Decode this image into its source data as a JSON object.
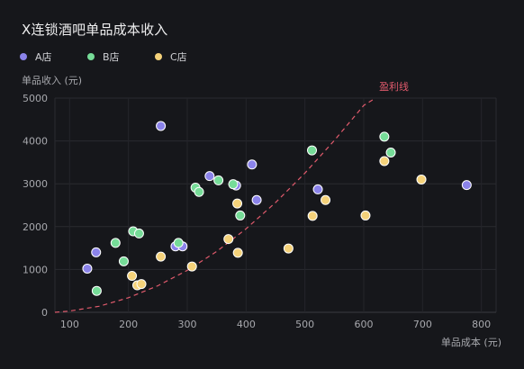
{
  "chart_data": {
    "type": "scatter",
    "title": "X连锁酒吧单品成本收入",
    "xlabel": "单品成本 (元)",
    "ylabel": "单品收入 (元)",
    "xlim": [
      75,
      825
    ],
    "ylim": [
      0,
      5000
    ],
    "xticks": [
      100,
      200,
      300,
      400,
      500,
      600,
      700,
      800
    ],
    "yticks": [
      0,
      1000,
      2000,
      3000,
      4000,
      5000
    ],
    "grid": true,
    "legend": "top-left",
    "series": [
      {
        "name": "A店",
        "color": "#8b83ea",
        "points": [
          [
            130,
            1020
          ],
          [
            145,
            1400
          ],
          [
            255,
            4350
          ],
          [
            280,
            1540
          ],
          [
            292,
            1540
          ],
          [
            338,
            3180
          ],
          [
            383,
            2960
          ],
          [
            410,
            3450
          ],
          [
            418,
            2620
          ],
          [
            522,
            2870
          ],
          [
            775,
            2970
          ]
        ]
      },
      {
        "name": "B店",
        "color": "#76dc98",
        "points": [
          [
            146,
            500
          ],
          [
            178,
            1620
          ],
          [
            192,
            1190
          ],
          [
            208,
            1890
          ],
          [
            218,
            1840
          ],
          [
            285,
            1620
          ],
          [
            314,
            2910
          ],
          [
            320,
            2810
          ],
          [
            353,
            3080
          ],
          [
            378,
            2990
          ],
          [
            390,
            2260
          ],
          [
            512,
            3780
          ],
          [
            635,
            4100
          ],
          [
            646,
            3730
          ]
        ]
      },
      {
        "name": "C店",
        "color": "#f5d27a",
        "points": [
          [
            206,
            850
          ],
          [
            215,
            630
          ],
          [
            222,
            660
          ],
          [
            255,
            1300
          ],
          [
            308,
            1070
          ],
          [
            370,
            1710
          ],
          [
            385,
            2540
          ],
          [
            386,
            1390
          ],
          [
            472,
            1490
          ],
          [
            513,
            2250
          ],
          [
            535,
            2620
          ],
          [
            603,
            2260
          ],
          [
            635,
            3530
          ],
          [
            698,
            3100
          ]
        ]
      }
    ],
    "annotation": {
      "label": "盈利线",
      "color": "#e05a6c",
      "curve": [
        [
          75,
          0
        ],
        [
          100,
          30
        ],
        [
          150,
          140
        ],
        [
          200,
          340
        ],
        [
          250,
          620
        ],
        [
          300,
          980
        ],
        [
          350,
          1420
        ],
        [
          400,
          1950
        ],
        [
          450,
          2560
        ],
        [
          500,
          3250
        ],
        [
          550,
          4010
        ],
        [
          600,
          4830
        ],
        [
          620,
          5000
        ]
      ]
    }
  }
}
